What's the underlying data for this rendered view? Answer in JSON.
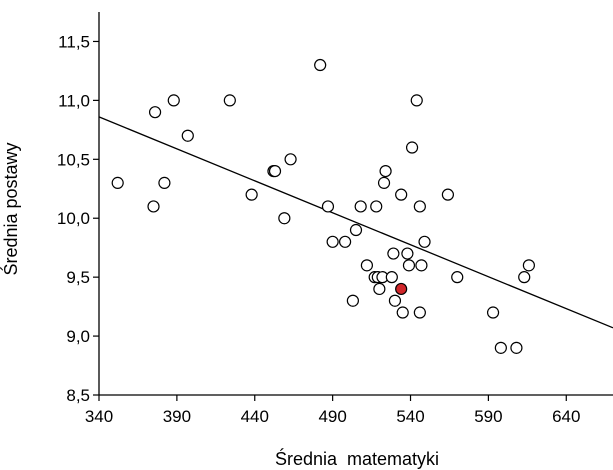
{
  "chart_data": {
    "type": "scatter",
    "xlabel": "Średnia  matematyki",
    "ylabel": "Średnia postawy",
    "xlim": [
      340,
      670
    ],
    "ylim": [
      8.5,
      11.75
    ],
    "x_ticks": [
      "340",
      "390",
      "440",
      "490",
      "540",
      "590",
      "640"
    ],
    "y_ticks": [
      "8,5",
      "9,0",
      "9,5",
      "10,0",
      "10,5",
      "11,0",
      "11,5"
    ],
    "grid": false,
    "points": [
      {
        "x": 352,
        "y": 10.3
      },
      {
        "x": 376,
        "y": 10.9
      },
      {
        "x": 375,
        "y": 10.1
      },
      {
        "x": 382,
        "y": 10.3
      },
      {
        "x": 388,
        "y": 11.0
      },
      {
        "x": 397,
        "y": 10.7
      },
      {
        "x": 424,
        "y": 11.0
      },
      {
        "x": 438,
        "y": 10.2
      },
      {
        "x": 452,
        "y": 10.4
      },
      {
        "x": 453,
        "y": 10.4
      },
      {
        "x": 459,
        "y": 10.0
      },
      {
        "x": 463,
        "y": 10.5
      },
      {
        "x": 482,
        "y": 11.3
      },
      {
        "x": 487,
        "y": 10.1
      },
      {
        "x": 490,
        "y": 9.8
      },
      {
        "x": 498,
        "y": 9.8
      },
      {
        "x": 503,
        "y": 9.3
      },
      {
        "x": 505,
        "y": 9.9
      },
      {
        "x": 508,
        "y": 10.1
      },
      {
        "x": 512,
        "y": 9.6
      },
      {
        "x": 517,
        "y": 9.5
      },
      {
        "x": 518,
        "y": 10.1
      },
      {
        "x": 519,
        "y": 9.5
      },
      {
        "x": 520,
        "y": 9.4
      },
      {
        "x": 522,
        "y": 9.5
      },
      {
        "x": 523,
        "y": 10.3
      },
      {
        "x": 524,
        "y": 10.4
      },
      {
        "x": 528,
        "y": 9.5
      },
      {
        "x": 529,
        "y": 9.7
      },
      {
        "x": 530,
        "y": 9.3
      },
      {
        "x": 534,
        "y": 10.2
      },
      {
        "x": 535,
        "y": 9.2
      },
      {
        "x": 538,
        "y": 9.7
      },
      {
        "x": 539,
        "y": 9.6
      },
      {
        "x": 541,
        "y": 10.6
      },
      {
        "x": 544,
        "y": 11.0
      },
      {
        "x": 546,
        "y": 10.1
      },
      {
        "x": 546,
        "y": 9.2
      },
      {
        "x": 547,
        "y": 9.6
      },
      {
        "x": 549,
        "y": 9.8
      },
      {
        "x": 564,
        "y": 10.2
      },
      {
        "x": 570,
        "y": 9.5
      },
      {
        "x": 593,
        "y": 9.2
      },
      {
        "x": 598,
        "y": 8.9
      },
      {
        "x": 608,
        "y": 8.9
      },
      {
        "x": 613,
        "y": 9.5
      },
      {
        "x": 616,
        "y": 9.6
      }
    ],
    "highlighted_point": {
      "x": 534,
      "y": 9.4,
      "color": "#d0262a"
    },
    "regression_line": {
      "x": [
        340,
        670
      ],
      "y": [
        10.86,
        9.07
      ]
    },
    "colors": {
      "marker_stroke": "#000000",
      "marker_fill": "#ffffff",
      "axis": "#000000",
      "line": "#000000"
    }
  }
}
